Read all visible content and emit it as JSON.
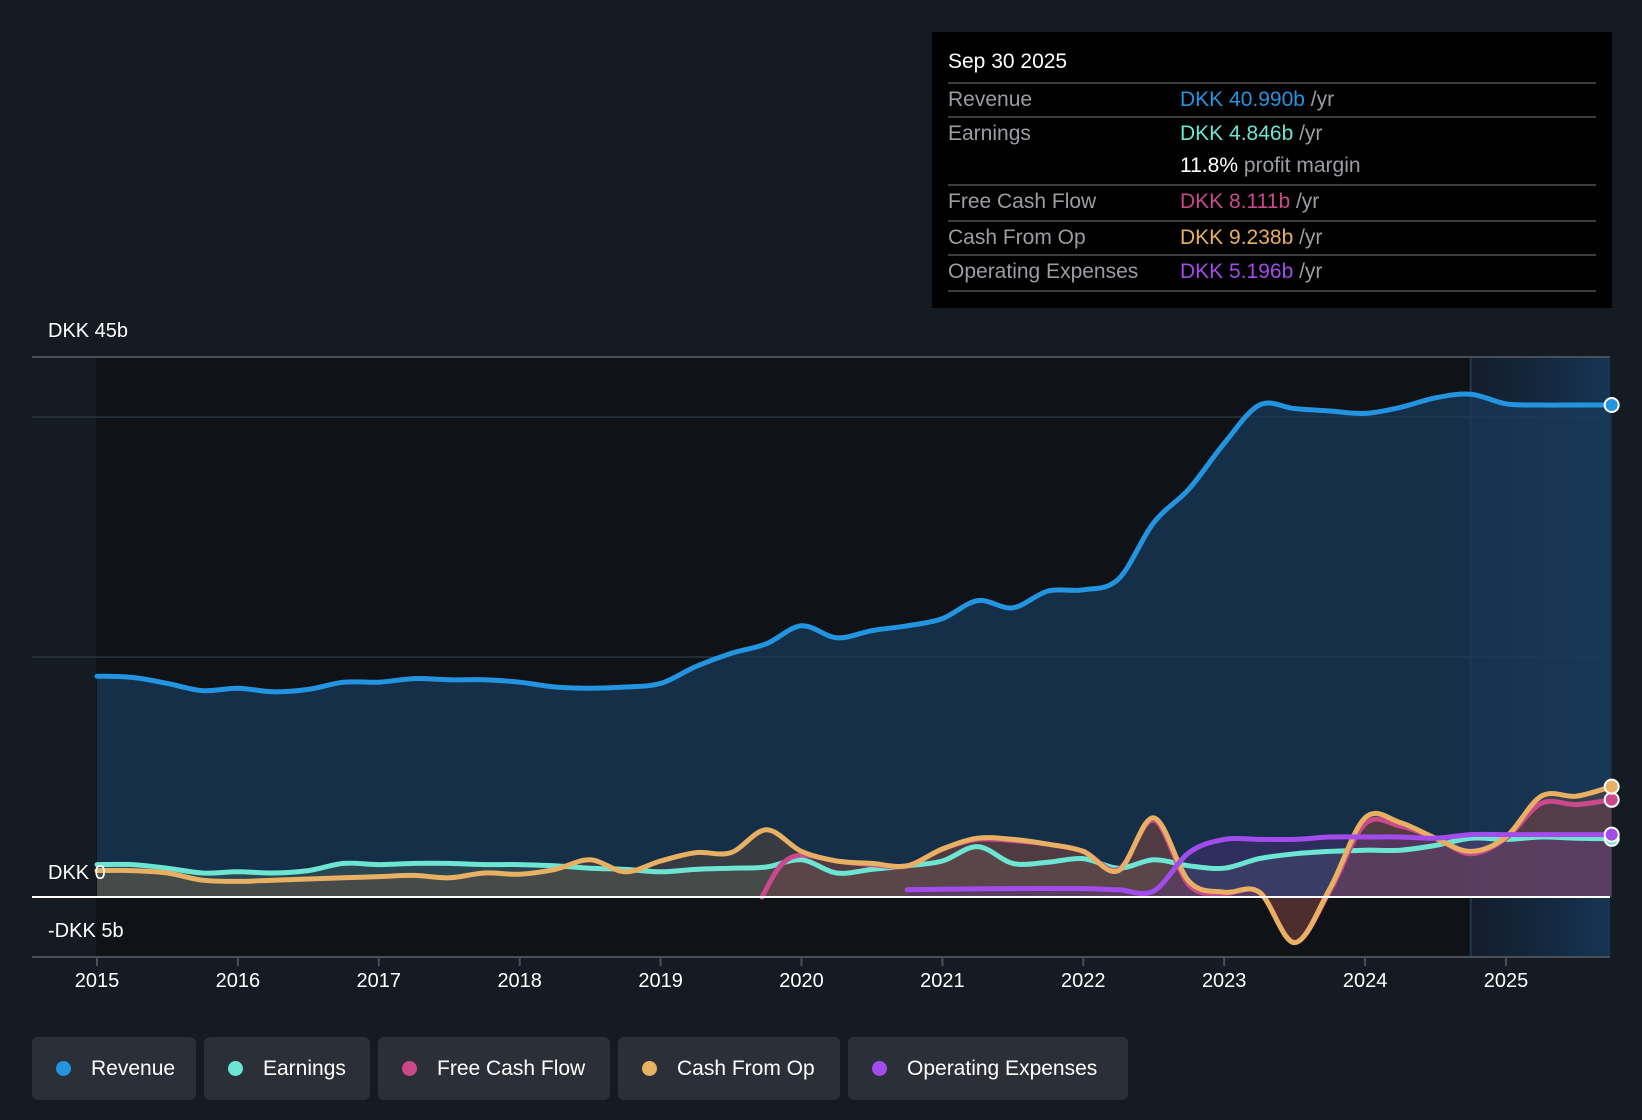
{
  "tooltip": {
    "date": "Sep 30 2025",
    "rows": [
      {
        "label": "Revenue",
        "value": "DKK 40.990b",
        "unit": " /yr",
        "color": "#2394df"
      },
      {
        "label": "Earnings",
        "value": "DKK 4.846b",
        "unit": " /yr",
        "color": "#6ce5d2"
      },
      {
        "label": "",
        "value": "11.8%",
        "unit": " profit margin",
        "color": "#ffffff"
      },
      {
        "label": "Free Cash Flow",
        "value": "DKK 8.111b",
        "unit": " /yr",
        "color": "#c9498a"
      },
      {
        "label": "Cash From Op",
        "value": "DKK 9.238b",
        "unit": " /yr",
        "color": "#e8b062"
      },
      {
        "label": "Operating Expenses",
        "value": "DKK 5.196b",
        "unit": " /yr",
        "color": "#a24ceb"
      }
    ]
  },
  "legend": [
    {
      "label": "Revenue",
      "color": "#2394df"
    },
    {
      "label": "Earnings",
      "color": "#6ce5d2"
    },
    {
      "label": "Free Cash Flow",
      "color": "#c9498a"
    },
    {
      "label": "Cash From Op",
      "color": "#e8b062"
    },
    {
      "label": "Operating Expenses",
      "color": "#a24ceb"
    }
  ],
  "chart_data": {
    "type": "area",
    "title": "",
    "xlabel": "",
    "ylabel": "",
    "currency": "DKK",
    "unit": "billions",
    "x_range": [
      2015,
      2025.75
    ],
    "ylim": [
      -5,
      45
    ],
    "y_tick_labels": [
      "DKK 45b",
      "DKK 0",
      "-DKK 5b"
    ],
    "y_ticks": [
      45,
      0,
      -5
    ],
    "gridlines": [
      40,
      20
    ],
    "x_ticks": [
      2015,
      2016,
      2017,
      2018,
      2019,
      2020,
      2021,
      2022,
      2023,
      2024,
      2025
    ],
    "x_tick_labels": [
      "2015",
      "2016",
      "2017",
      "2018",
      "2019",
      "2020",
      "2021",
      "2022",
      "2023",
      "2024",
      "2025"
    ],
    "highlight_from": 2024.75,
    "legend_position": "bottom",
    "series": [
      {
        "name": "Revenue",
        "color": "#2394df",
        "x": [
          2015,
          2015.25,
          2015.5,
          2015.75,
          2016,
          2016.25,
          2016.5,
          2016.75,
          2017,
          2017.25,
          2017.5,
          2017.75,
          2018,
          2018.25,
          2018.5,
          2018.75,
          2019,
          2019.25,
          2019.5,
          2019.75,
          2020,
          2020.25,
          2020.5,
          2020.75,
          2021,
          2021.25,
          2021.5,
          2021.75,
          2022,
          2022.25,
          2022.5,
          2022.75,
          2023,
          2023.25,
          2023.5,
          2023.75,
          2024,
          2024.25,
          2024.5,
          2024.75,
          2025,
          2025.25,
          2025.5,
          2025.75
        ],
        "values": [
          18.4,
          18.3,
          17.8,
          17.2,
          17.4,
          17.1,
          17.3,
          17.9,
          17.9,
          18.2,
          18.1,
          18.1,
          17.9,
          17.5,
          17.4,
          17.5,
          17.8,
          19.2,
          20.3,
          21.1,
          22.6,
          21.6,
          22.2,
          22.6,
          23.2,
          24.7,
          24.1,
          25.5,
          25.6,
          26.5,
          31.2,
          34.0,
          37.8,
          41.0,
          40.7,
          40.5,
          40.3,
          40.8,
          41.6,
          41.9,
          41.1,
          41.0,
          41.0,
          41.0
        ]
      },
      {
        "name": "Earnings",
        "color": "#6ce5d2",
        "x": [
          2015,
          2015.25,
          2015.5,
          2015.75,
          2016,
          2016.25,
          2016.5,
          2016.75,
          2017,
          2017.25,
          2017.5,
          2017.75,
          2018,
          2018.25,
          2018.5,
          2018.75,
          2019,
          2019.25,
          2019.5,
          2019.75,
          2020,
          2020.25,
          2020.5,
          2020.75,
          2021,
          2021.25,
          2021.5,
          2021.75,
          2022,
          2022.25,
          2022.5,
          2022.75,
          2023,
          2023.25,
          2023.5,
          2023.75,
          2024,
          2024.25,
          2024.5,
          2024.75,
          2025,
          2025.25,
          2025.5,
          2025.75
        ],
        "values": [
          2.7,
          2.7,
          2.4,
          2.0,
          2.1,
          2.0,
          2.2,
          2.8,
          2.7,
          2.8,
          2.8,
          2.7,
          2.7,
          2.6,
          2.4,
          2.3,
          2.1,
          2.3,
          2.4,
          2.5,
          3.1,
          2.0,
          2.3,
          2.6,
          3.0,
          4.2,
          2.8,
          2.9,
          3.2,
          2.4,
          3.1,
          2.6,
          2.4,
          3.2,
          3.6,
          3.8,
          3.9,
          3.9,
          4.3,
          4.9,
          4.8,
          5.0,
          4.9,
          4.85
        ]
      },
      {
        "name": "Free Cash Flow",
        "color": "#c9498a",
        "x": [
          2019.72,
          2019.85,
          2020,
          2020.25,
          2020.5,
          2020.75,
          2021,
          2021.25,
          2021.5,
          2021.75,
          2022,
          2022.25,
          2022.5,
          2022.75,
          2023,
          2023.25,
          2023.5,
          2023.75,
          2024,
          2024.25,
          2024.5,
          2024.75,
          2025,
          2025.25,
          2025.5,
          2025.75
        ],
        "values": [
          0.0,
          2.6,
          3.5,
          3.0,
          2.7,
          2.6,
          4.0,
          4.8,
          4.7,
          4.4,
          3.8,
          2.3,
          6.4,
          1.0,
          0.3,
          0.4,
          -3.8,
          0.5,
          6.1,
          5.9,
          4.9,
          3.6,
          4.9,
          7.8,
          7.7,
          8.1
        ]
      },
      {
        "name": "Cash From Op",
        "color": "#e8b062",
        "x": [
          2015,
          2015.25,
          2015.5,
          2015.75,
          2016,
          2016.25,
          2016.5,
          2016.75,
          2017,
          2017.25,
          2017.5,
          2017.75,
          2018,
          2018.25,
          2018.5,
          2018.75,
          2019,
          2019.25,
          2019.5,
          2019.75,
          2020,
          2020.25,
          2020.5,
          2020.75,
          2021,
          2021.25,
          2021.5,
          2021.75,
          2022,
          2022.25,
          2022.5,
          2022.75,
          2023,
          2023.25,
          2023.5,
          2023.75,
          2024,
          2024.25,
          2024.5,
          2024.75,
          2025,
          2025.25,
          2025.5,
          2025.75
        ],
        "values": [
          2.2,
          2.2,
          2.0,
          1.4,
          1.3,
          1.4,
          1.5,
          1.6,
          1.7,
          1.8,
          1.6,
          2.0,
          1.9,
          2.3,
          3.1,
          2.1,
          3.0,
          3.7,
          3.7,
          5.6,
          3.8,
          3.0,
          2.8,
          2.6,
          4.0,
          4.9,
          4.8,
          4.4,
          3.8,
          2.2,
          6.6,
          1.3,
          0.4,
          0.4,
          -3.8,
          0.7,
          6.6,
          6.2,
          4.9,
          3.8,
          5.0,
          8.4,
          8.4,
          9.2
        ]
      },
      {
        "name": "Operating Expenses",
        "color": "#a24ceb",
        "x": [
          2020.75,
          2021,
          2021.5,
          2022,
          2022.25,
          2022.5,
          2022.75,
          2023,
          2023.25,
          2023.5,
          2023.75,
          2024,
          2024.25,
          2024.5,
          2024.75,
          2025,
          2025.25,
          2025.5,
          2025.75
        ],
        "values": [
          0.6,
          0.65,
          0.7,
          0.7,
          0.6,
          0.5,
          3.7,
          4.8,
          4.8,
          4.8,
          5.0,
          5.0,
          5.0,
          4.9,
          5.2,
          5.2,
          5.2,
          5.2,
          5.2
        ]
      }
    ]
  }
}
